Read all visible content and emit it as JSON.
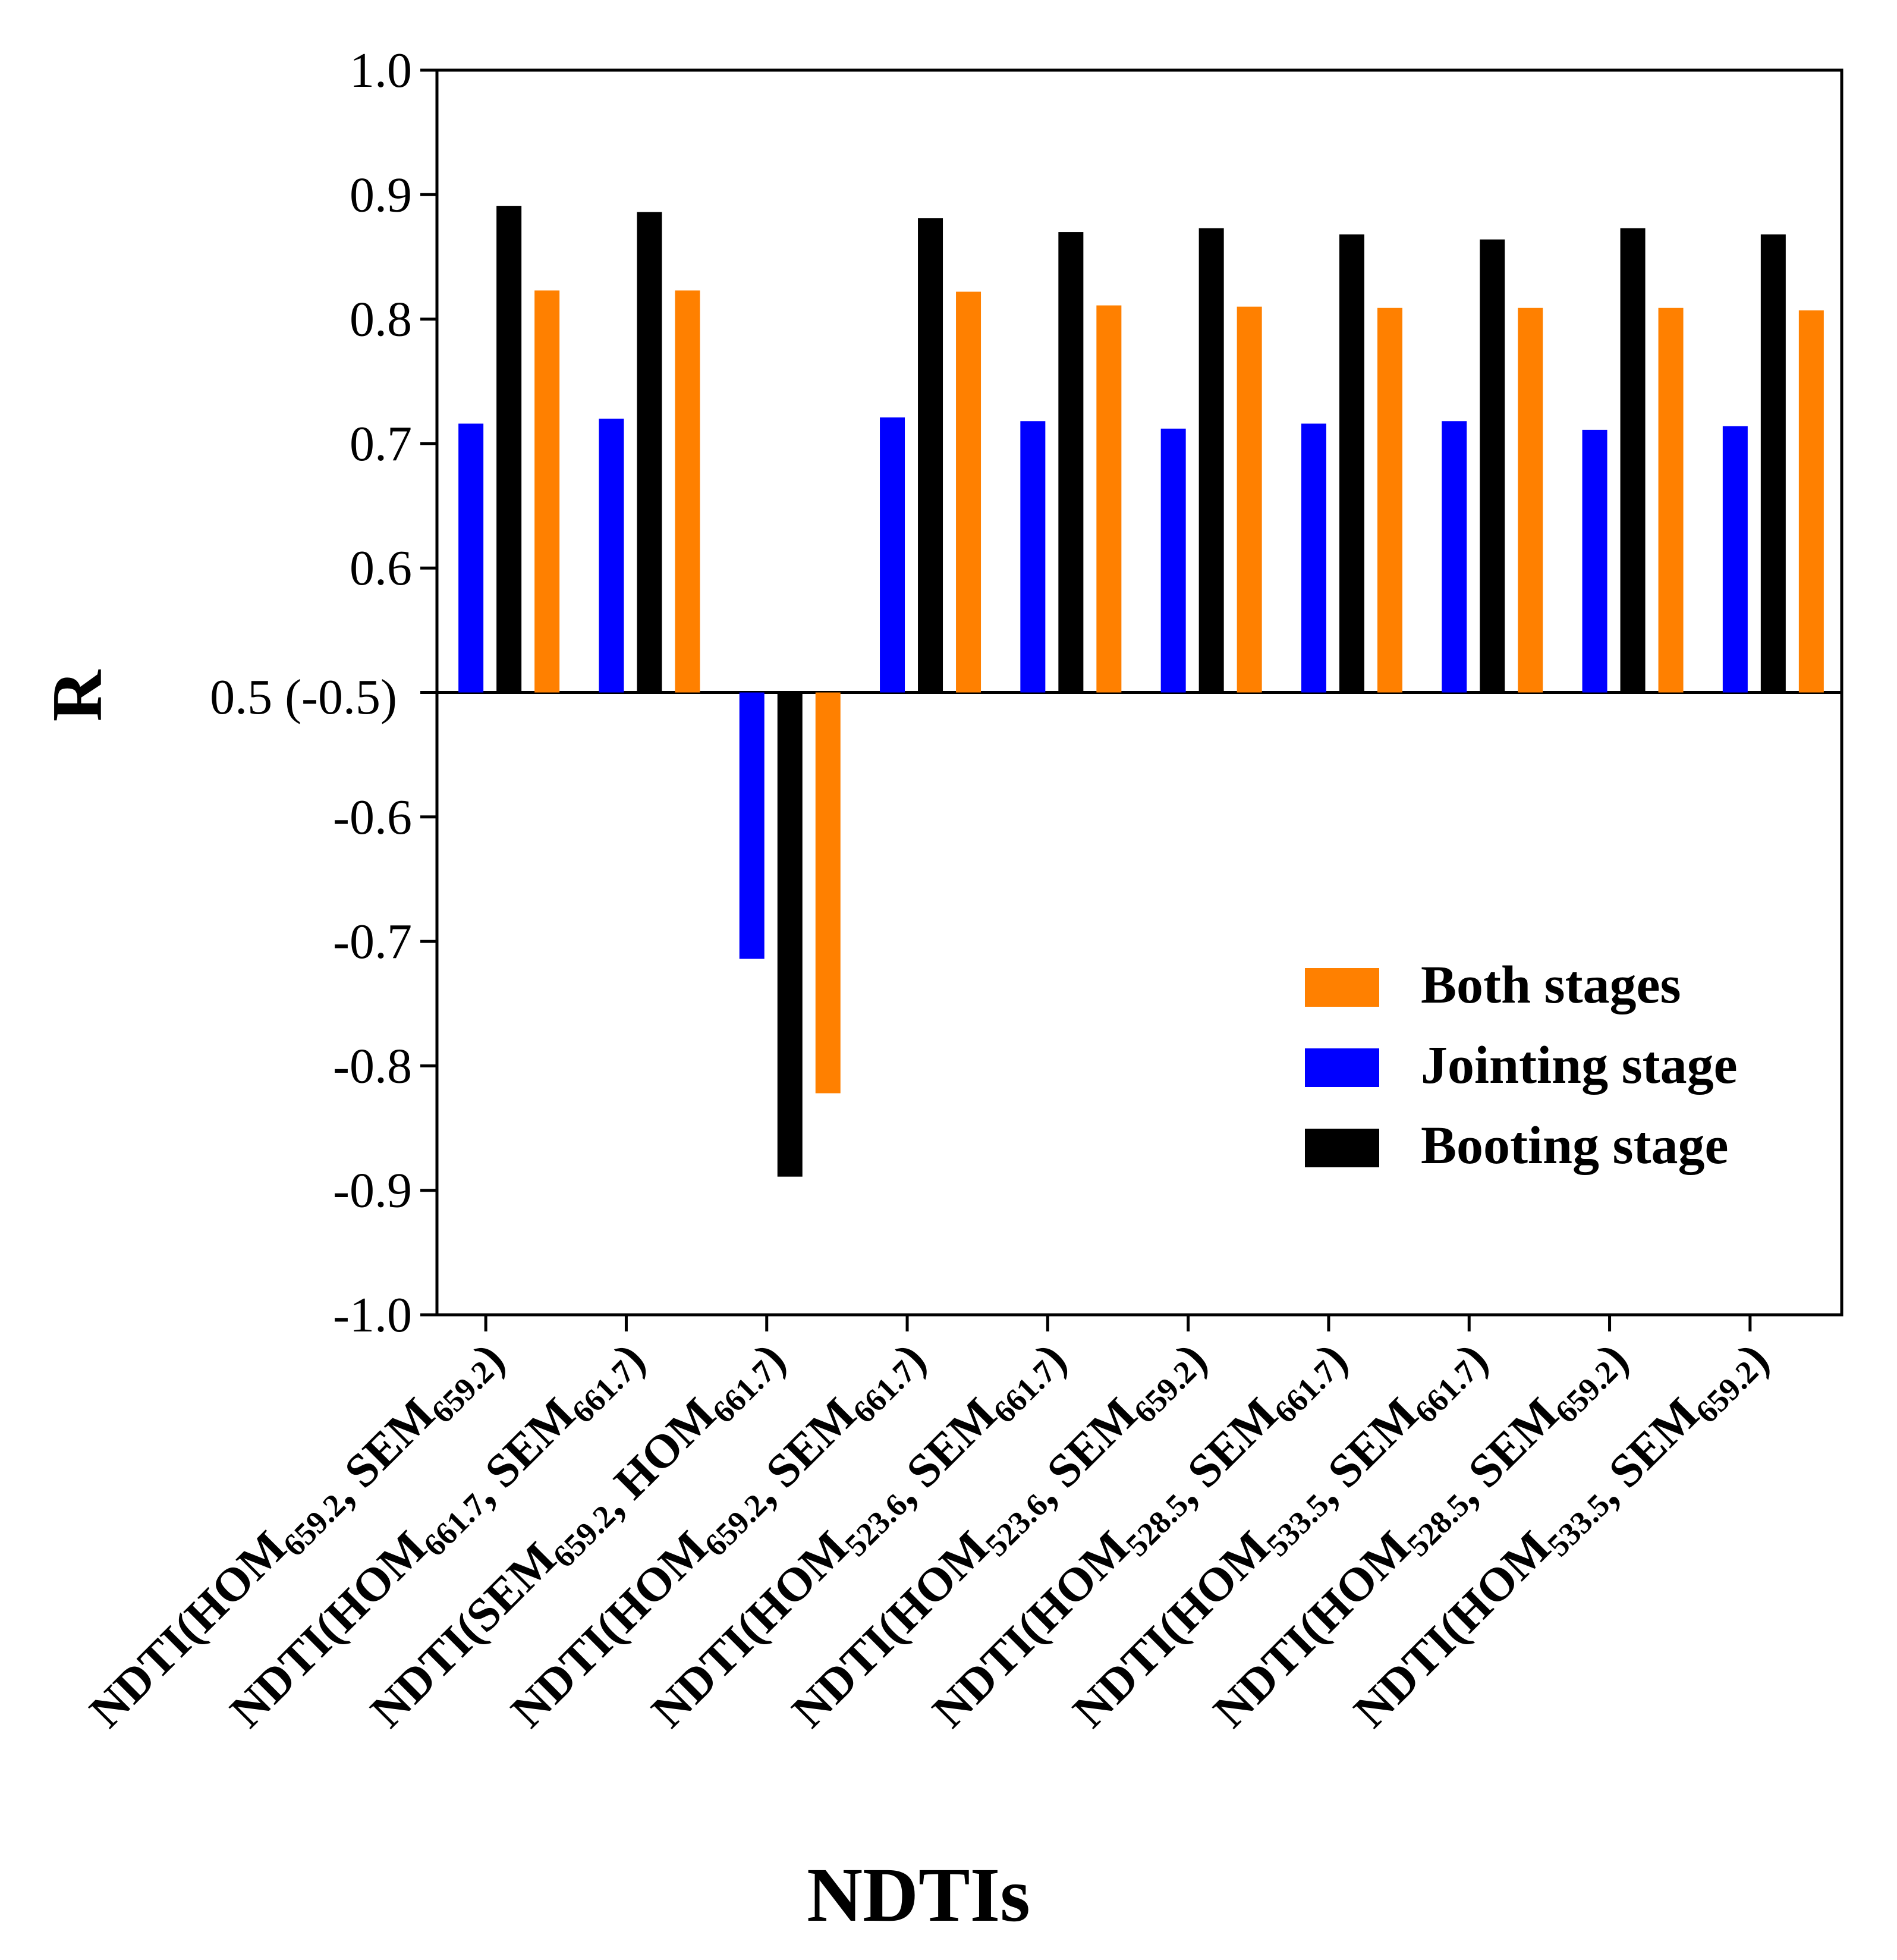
{
  "chart_data": {
    "type": "bar",
    "title": "",
    "xlabel": "NDTIs",
    "ylabel": "R",
    "ylim": [
      -1.0,
      1.0
    ],
    "axis_break_note": "Axis shows |R| from 0.5 to 1.0 upward and -0.5 to -1.0 downward; baseline labeled 0.5 (-0.5)",
    "y_ticks_positive": [
      "1.0",
      "0.9",
      "0.8",
      "0.7",
      "0.6"
    ],
    "y_ticks_negative": [
      "-0.6",
      "-0.7",
      "-0.8",
      "-0.9",
      "-1.0"
    ],
    "baseline_label": "0.5 (-0.5)",
    "categories": [
      {
        "pre": "NDTI(HOM",
        "s1": "659.2",
        "mid": ", SEM",
        "s2": "659.2",
        "post": ")"
      },
      {
        "pre": "NDTI(HOM",
        "s1": "661.7",
        "mid": ", SEM",
        "s2": "661.7",
        "post": ")"
      },
      {
        "pre": "NDTI(SEM",
        "s1": "659.2",
        "mid": ", HOM",
        "s2": "661.7",
        "post": ")"
      },
      {
        "pre": "NDTI(HOM",
        "s1": "659.2",
        "mid": ", SEM",
        "s2": "661.7",
        "post": ")"
      },
      {
        "pre": "NDTI(HOM",
        "s1": "523.6",
        "mid": ", SEM",
        "s2": "661.7",
        "post": ")"
      },
      {
        "pre": "NDTI(HOM",
        "s1": "523.6",
        "mid": ", SEM",
        "s2": "659.2",
        "post": ")"
      },
      {
        "pre": "NDTI(HOM",
        "s1": "528.5",
        "mid": ", SEM",
        "s2": "661.7",
        "post": ")"
      },
      {
        "pre": "NDTI(HOM",
        "s1": "533.5",
        "mid": ", SEM",
        "s2": "661.7",
        "post": ")"
      },
      {
        "pre": "NDTI(HOM",
        "s1": "528.5",
        "mid": ", SEM",
        "s2": "659.2",
        "post": ")"
      },
      {
        "pre": "NDTI(HOM",
        "s1": "533.5",
        "mid": ", SEM",
        "s2": "659.2",
        "post": ")"
      }
    ],
    "series": [
      {
        "name": "Jointing stage",
        "color": "#0000ff",
        "values": [
          0.716,
          0.72,
          -0.714,
          0.721,
          0.718,
          0.712,
          0.716,
          0.718,
          0.711,
          0.714
        ]
      },
      {
        "name": "Booting stage",
        "color": "#000000",
        "values": [
          0.891,
          0.886,
          -0.889,
          0.881,
          0.87,
          0.873,
          0.868,
          0.864,
          0.873,
          0.868
        ]
      },
      {
        "name": "Both stages",
        "color": "#ff8000",
        "values": [
          0.823,
          0.823,
          -0.822,
          0.822,
          0.811,
          0.81,
          0.809,
          0.809,
          0.809,
          0.807
        ]
      }
    ],
    "legend": {
      "placement": "lower-right",
      "entries": [
        {
          "label": "Both stages",
          "color": "#ff8000"
        },
        {
          "label": "Jointing stage",
          "color": "#0000ff"
        },
        {
          "label": "Booting stage",
          "color": "#000000"
        }
      ]
    }
  }
}
